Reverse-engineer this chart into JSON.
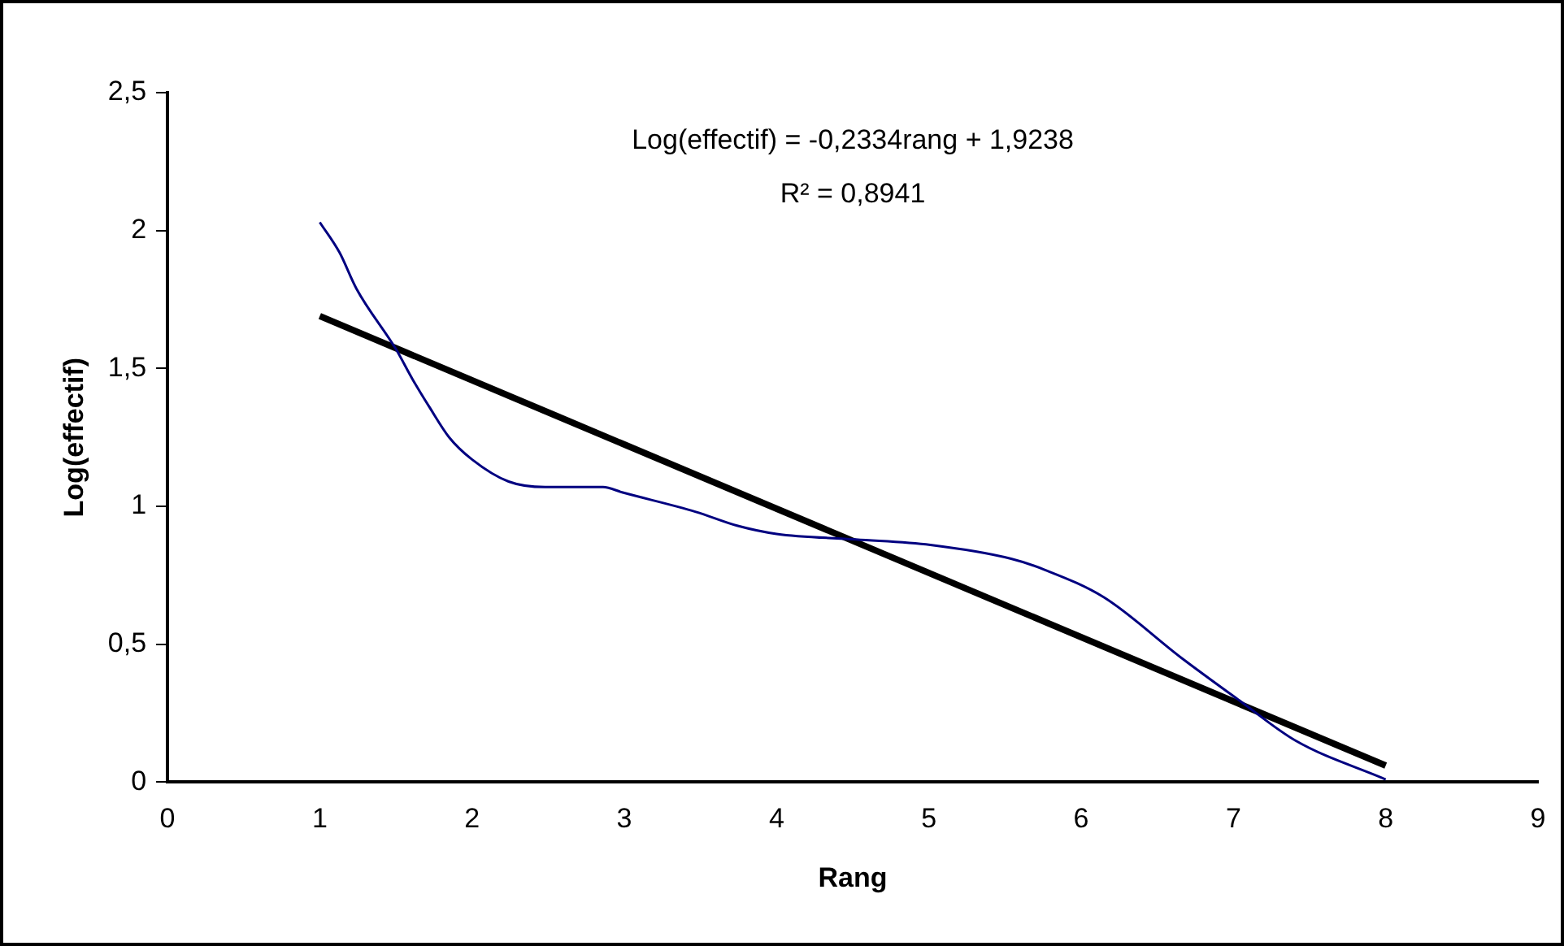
{
  "chart_data": {
    "type": "line",
    "xlabel": "Rang",
    "ylabel": "Log(effectif)",
    "annotations": [
      "Log(effectif) = -0,2334rang + 1,9238",
      "R² = 0,8941"
    ],
    "series": [
      {
        "color": "#000080",
        "x": [
          1.0,
          1.13,
          1.24,
          1.5,
          1.61,
          1.72,
          1.85,
          2.0,
          2.24,
          2.48,
          2.86,
          2.99,
          3.47,
          3.74,
          4.0,
          4.52,
          5.01,
          5.54,
          5.76,
          6.15,
          6.66,
          7.03,
          7.41,
          8.0
        ],
        "values": [
          2.03,
          1.92,
          1.79,
          1.57,
          1.46,
          1.36,
          1.25,
          1.17,
          1.09,
          1.07,
          1.07,
          1.05,
          0.98,
          0.93,
          0.9,
          0.88,
          0.86,
          0.81,
          0.77,
          0.67,
          0.45,
          0.3,
          0.15,
          0.01
        ]
      },
      {
        "color": "#000000",
        "x": [
          1,
          8
        ],
        "values": [
          1.69,
          0.06
        ]
      }
    ],
    "xlim": [
      0,
      9
    ],
    "xticks": [
      0,
      1,
      2,
      3,
      4,
      5,
      6,
      7,
      8,
      9
    ],
    "ylim": [
      0,
      2.5
    ],
    "yticks": [
      0,
      {
        "value": 0.5,
        "label": "0,5"
      },
      1,
      {
        "value": 1.5,
        "label": "1,5"
      },
      2,
      {
        "value": 2.5,
        "label": "2,5"
      }
    ],
    "grid": false,
    "legend": false,
    "marker": "none",
    "line_style": "solid"
  }
}
